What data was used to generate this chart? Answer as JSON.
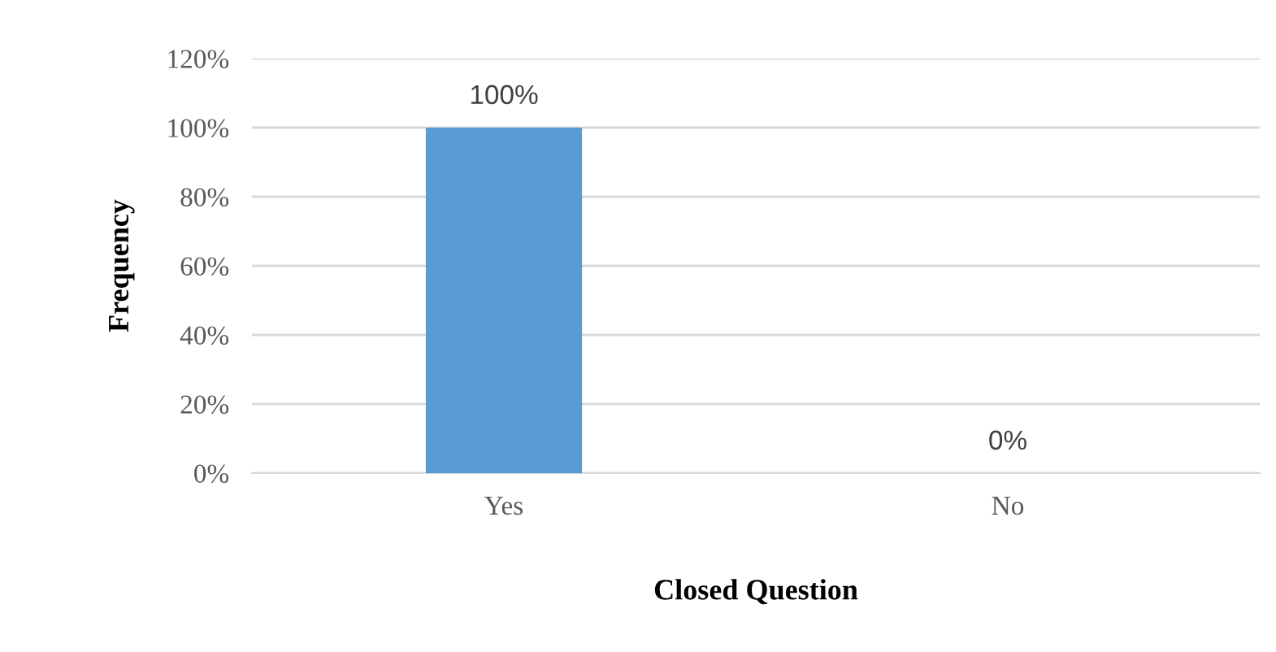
{
  "chart_data": {
    "type": "bar",
    "xlabel": "Closed Question",
    "ylabel": "Frequency",
    "categories": [
      "Yes",
      "No"
    ],
    "values": [
      100,
      0
    ],
    "color": "#5b9bd5",
    "value_labels": [
      "100%",
      "0%"
    ],
    "ylim": [
      0,
      120
    ],
    "yticks": [
      {
        "value": 0,
        "label": "0%"
      },
      {
        "value": 20,
        "label": "20%"
      },
      {
        "value": 40,
        "label": "40%"
      },
      {
        "value": 60,
        "label": "60%"
      },
      {
        "value": 80,
        "label": "80%"
      },
      {
        "value": 100,
        "label": "100%"
      },
      {
        "value": 120,
        "label": "120%"
      }
    ],
    "grid": "y",
    "legend": false
  }
}
